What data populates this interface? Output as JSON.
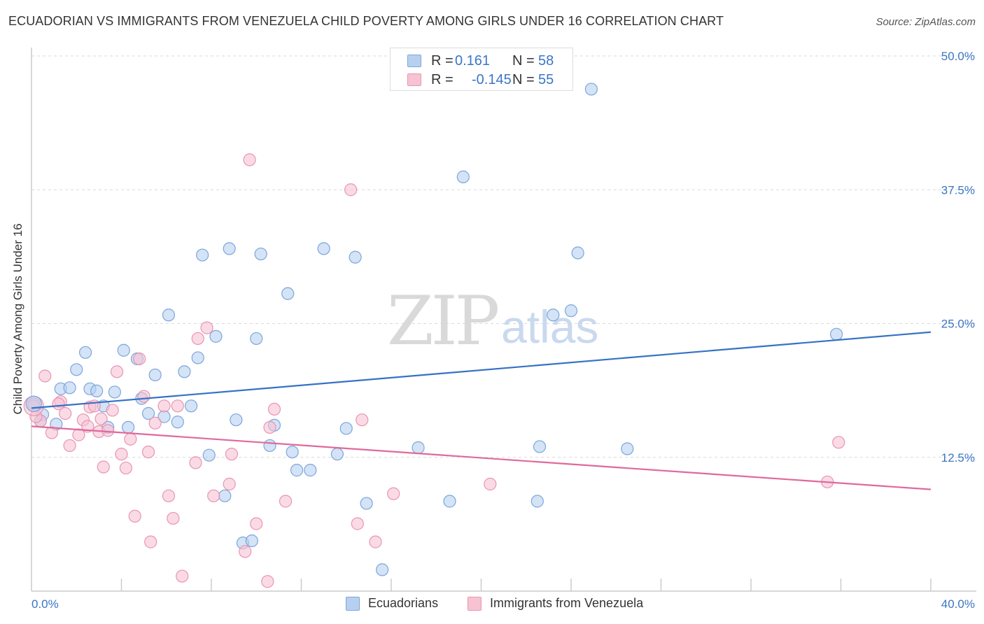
{
  "title": "ECUADORIAN VS IMMIGRANTS FROM VENEZUELA CHILD POVERTY AMONG GIRLS UNDER 16 CORRELATION CHART",
  "source": "Source: ZipAtlas.com",
  "watermark": {
    "zip": "ZIP",
    "atlas": "atlas"
  },
  "colors": {
    "blue_fill": "#b8d0f0",
    "blue_stroke": "#7ba6dc",
    "blue_line": "#3572c6",
    "pink_fill": "#f7c3d3",
    "pink_stroke": "#e994b2",
    "pink_line": "#e0699a",
    "grid": "#d9d9d9",
    "tick_text": "#3b76c4"
  },
  "legend": {
    "rows": [
      {
        "r_label": "R =",
        "r_value": "0.161",
        "n_label": "N =",
        "n_value": "58",
        "color": "blue"
      },
      {
        "r_label": "R =",
        "r_value": "-0.145",
        "n_label": "N =",
        "n_value": "55",
        "color": "pink"
      }
    ],
    "bottom": [
      {
        "label": "Ecuadorians",
        "color": "blue"
      },
      {
        "label": "Immigrants from Venezuela",
        "color": "pink"
      }
    ]
  },
  "chart_data": {
    "type": "scatter",
    "title": "ECUADORIAN VS IMMIGRANTS FROM VENEZUELA CHILD POVERTY AMONG GIRLS UNDER 16 CORRELATION CHART",
    "xlabel": "",
    "ylabel": "Child Poverty Among Girls Under 16",
    "xlim": [
      0,
      40
    ],
    "ylim": [
      0,
      50
    ],
    "x_tick_labels": [
      "0.0%",
      "40.0%"
    ],
    "y_ticks": [
      12.5,
      25.0,
      37.5,
      50.0
    ],
    "y_tick_labels": [
      "12.5%",
      "25.0%",
      "37.5%",
      "50.0%"
    ],
    "grid": "horizontal dashed",
    "legend_position": "top-center",
    "series": [
      {
        "name": "Ecuadorians",
        "color": "blue",
        "trend": {
          "x": [
            0,
            40
          ],
          "y": [
            17.1,
            24.2
          ]
        },
        "points": [
          [
            0.1,
            17.5
          ],
          [
            0.5,
            16.5
          ],
          [
            1.1,
            15.6
          ],
          [
            1.3,
            18.9
          ],
          [
            1.7,
            19.0
          ],
          [
            2.0,
            20.7
          ],
          [
            2.4,
            22.3
          ],
          [
            2.6,
            18.9
          ],
          [
            2.9,
            18.7
          ],
          [
            3.2,
            17.3
          ],
          [
            3.4,
            15.3
          ],
          [
            3.7,
            18.6
          ],
          [
            4.1,
            22.5
          ],
          [
            4.3,
            15.3
          ],
          [
            4.7,
            21.7
          ],
          [
            4.9,
            18.0
          ],
          [
            5.2,
            16.6
          ],
          [
            5.5,
            20.2
          ],
          [
            5.9,
            16.3
          ],
          [
            6.1,
            25.8
          ],
          [
            6.5,
            15.8
          ],
          [
            6.8,
            20.5
          ],
          [
            7.1,
            17.3
          ],
          [
            7.4,
            21.8
          ],
          [
            7.6,
            31.4
          ],
          [
            7.9,
            12.7
          ],
          [
            8.2,
            23.8
          ],
          [
            8.6,
            8.9
          ],
          [
            8.8,
            32.0
          ],
          [
            9.1,
            16.0
          ],
          [
            9.4,
            4.5
          ],
          [
            9.8,
            4.7
          ],
          [
            10.0,
            23.6
          ],
          [
            10.2,
            31.5
          ],
          [
            10.6,
            13.6
          ],
          [
            10.8,
            15.5
          ],
          [
            11.4,
            27.8
          ],
          [
            11.6,
            13.0
          ],
          [
            11.8,
            11.3
          ],
          [
            12.4,
            11.3
          ],
          [
            13.0,
            32.0
          ],
          [
            13.6,
            12.8
          ],
          [
            14.0,
            15.2
          ],
          [
            14.4,
            31.2
          ],
          [
            14.9,
            8.2
          ],
          [
            15.6,
            2.0
          ],
          [
            17.2,
            13.4
          ],
          [
            18.6,
            8.4
          ],
          [
            19.2,
            38.7
          ],
          [
            22.5,
            8.4
          ],
          [
            22.6,
            13.5
          ],
          [
            23.2,
            25.8
          ],
          [
            24.0,
            26.2
          ],
          [
            24.3,
            31.6
          ],
          [
            24.9,
            46.9
          ],
          [
            26.5,
            13.3
          ],
          [
            35.8,
            24.0
          ],
          [
            0.4,
            15.9
          ]
        ]
      },
      {
        "name": "Immigrants from Venezuela",
        "color": "pink",
        "trend": {
          "x": [
            0,
            40
          ],
          "y": [
            15.4,
            9.5
          ]
        },
        "points": [
          [
            0.1,
            17.3
          ],
          [
            0.4,
            15.9
          ],
          [
            0.6,
            20.1
          ],
          [
            0.9,
            14.8
          ],
          [
            1.3,
            17.7
          ],
          [
            1.5,
            16.6
          ],
          [
            1.7,
            13.6
          ],
          [
            2.1,
            14.6
          ],
          [
            2.3,
            16.0
          ],
          [
            2.5,
            15.4
          ],
          [
            2.6,
            17.2
          ],
          [
            2.8,
            17.3
          ],
          [
            3.0,
            14.9
          ],
          [
            3.1,
            16.1
          ],
          [
            3.2,
            11.6
          ],
          [
            3.4,
            15.0
          ],
          [
            3.6,
            16.9
          ],
          [
            3.8,
            20.5
          ],
          [
            4.0,
            12.8
          ],
          [
            4.2,
            11.5
          ],
          [
            4.4,
            14.2
          ],
          [
            4.6,
            7.0
          ],
          [
            4.8,
            21.7
          ],
          [
            5.0,
            18.2
          ],
          [
            5.2,
            13.0
          ],
          [
            5.3,
            4.6
          ],
          [
            5.5,
            15.7
          ],
          [
            5.9,
            17.3
          ],
          [
            6.1,
            8.9
          ],
          [
            6.3,
            6.8
          ],
          [
            6.5,
            17.3
          ],
          [
            6.7,
            1.4
          ],
          [
            7.3,
            12.0
          ],
          [
            7.4,
            23.6
          ],
          [
            7.8,
            24.6
          ],
          [
            8.1,
            8.9
          ],
          [
            8.8,
            10.0
          ],
          [
            8.9,
            12.8
          ],
          [
            9.5,
            3.7
          ],
          [
            9.7,
            40.3
          ],
          [
            10.0,
            6.3
          ],
          [
            10.5,
            0.9
          ],
          [
            10.6,
            15.3
          ],
          [
            10.8,
            17.0
          ],
          [
            11.3,
            8.4
          ],
          [
            14.2,
            37.5
          ],
          [
            14.5,
            6.3
          ],
          [
            14.7,
            16.0
          ],
          [
            15.3,
            4.6
          ],
          [
            16.1,
            9.1
          ],
          [
            20.4,
            10.0
          ],
          [
            35.4,
            10.2
          ],
          [
            35.9,
            13.9
          ],
          [
            0.2,
            16.3
          ],
          [
            1.2,
            17.5
          ]
        ]
      }
    ]
  }
}
